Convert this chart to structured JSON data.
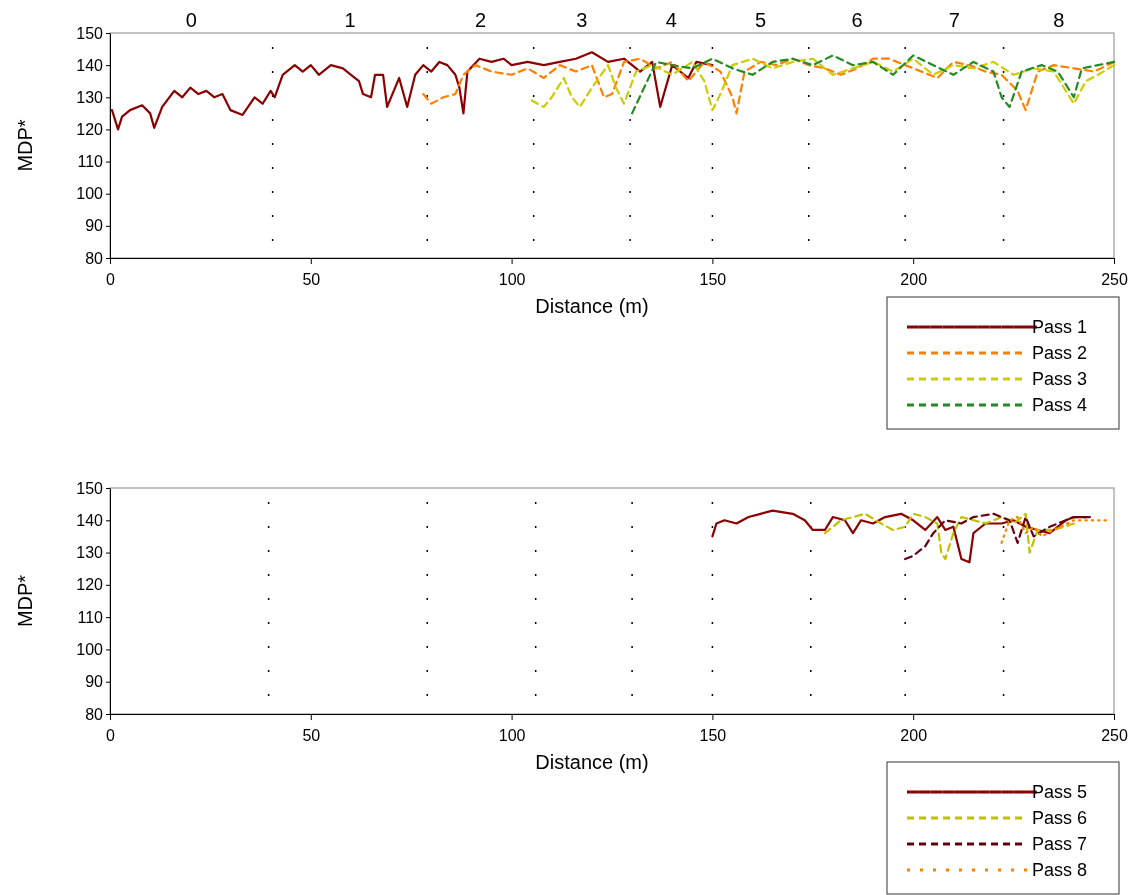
{
  "chart_data": [
    {
      "type": "line",
      "xlabel": "Distance (m)",
      "ylabel": "MDP*",
      "xlim": [
        0,
        250
      ],
      "xticks": [
        0,
        50,
        100,
        150,
        200,
        250
      ],
      "ylim": [
        80,
        150
      ],
      "yticks": [
        80,
        90,
        100,
        110,
        120,
        130,
        140,
        150
      ],
      "grid": false,
      "legend": "bottom right",
      "marker": "none",
      "annotations": [
        "0",
        "1",
        "2",
        "3",
        "4",
        "5",
        "6",
        "7",
        "8"
      ],
      "ref_lines": [
        {
          "axis": "x",
          "value": 40.5,
          "color": "#000000",
          "line_style": "dotted"
        },
        {
          "axis": "x",
          "value": 79,
          "color": "#000000",
          "line_style": "dotted"
        },
        {
          "axis": "x",
          "value": 105.5,
          "color": "#000000",
          "line_style": "dotted"
        },
        {
          "axis": "x",
          "value": 129.5,
          "color": "#000000",
          "line_style": "dotted"
        },
        {
          "axis": "x",
          "value": 150,
          "color": "#000000",
          "line_style": "dotted"
        },
        {
          "axis": "x",
          "value": 174,
          "color": "#000000",
          "line_style": "dotted"
        },
        {
          "axis": "x",
          "value": 198,
          "color": "#000000",
          "line_style": "dotted"
        },
        {
          "axis": "x",
          "value": 222.5,
          "color": "#000000",
          "line_style": "dotted"
        }
      ],
      "series": [
        {
          "name": "Pass 1",
          "color": "#8b0000",
          "line_style": "solid",
          "x": [
            0.5,
            2,
            3,
            5,
            8,
            10,
            11,
            13,
            16,
            18,
            20,
            22,
            24,
            26,
            28,
            30,
            33,
            36,
            38,
            40,
            41,
            43,
            46,
            48,
            50,
            52,
            55,
            58,
            60,
            62,
            63,
            65,
            66,
            68,
            69,
            71,
            72,
            74,
            76,
            78,
            80,
            82,
            84,
            86,
            87,
            88,
            89,
            92,
            95,
            98,
            100,
            104,
            108,
            112,
            116,
            120,
            124,
            128,
            132,
            135,
            137,
            140,
            144,
            146,
            150
          ],
          "values": [
            126,
            120,
            124,
            126,
            127.5,
            125,
            120.5,
            127,
            132,
            130,
            133,
            131,
            132,
            130,
            131,
            126,
            124.5,
            130,
            128,
            132,
            130,
            137,
            140,
            138,
            140,
            137,
            140,
            139,
            137,
            135,
            131,
            130,
            137,
            137,
            127,
            133,
            136,
            127,
            137,
            140,
            138,
            141,
            140,
            137,
            133,
            125,
            138,
            142,
            141,
            142,
            140,
            141,
            140,
            141,
            142,
            144,
            141,
            142,
            138,
            141,
            127,
            140,
            136,
            141,
            140
          ]
        },
        {
          "name": "Pass 2",
          "color": "#ff8000",
          "line_style": "dashed",
          "x": [
            78,
            80,
            83,
            86,
            88,
            91,
            95,
            100,
            104,
            108,
            112,
            116,
            120,
            123,
            125,
            128,
            132,
            136,
            140,
            144,
            148,
            152,
            155,
            156,
            158,
            162,
            166,
            170,
            174,
            178,
            182,
            186,
            190,
            194,
            198,
            202,
            206,
            210,
            214,
            218,
            222,
            226,
            228,
            231,
            235,
            240,
            245,
            250
          ],
          "values": [
            131,
            128,
            130,
            131,
            137,
            140,
            138,
            137,
            139,
            136,
            140,
            138,
            140,
            130,
            131,
            141,
            142,
            139,
            141,
            135,
            141,
            138,
            130,
            125,
            138,
            141,
            140,
            142,
            140,
            139,
            137,
            139,
            142,
            142,
            140,
            138,
            136,
            141,
            140,
            138,
            137,
            132,
            126,
            138,
            140,
            139,
            138,
            141
          ]
        },
        {
          "name": "Pass 3",
          "color": "#cccc00",
          "line_style": "dashed",
          "x": [
            105,
            108,
            110,
            113,
            115,
            117,
            120,
            124,
            126,
            128,
            131,
            135,
            140,
            145,
            148,
            150,
            152,
            155,
            160,
            165,
            170,
            175,
            180,
            185,
            190,
            195,
            200,
            205,
            210,
            215,
            220,
            225,
            230,
            235,
            240,
            243,
            246,
            250
          ],
          "values": [
            129,
            127,
            130,
            136,
            130,
            127,
            133,
            140,
            133,
            128,
            138,
            140,
            137,
            141,
            135,
            126,
            131,
            140,
            142,
            139,
            141,
            142,
            137,
            139,
            141,
            138,
            142,
            137,
            140,
            139,
            141,
            137,
            139,
            138,
            128,
            135,
            137,
            140
          ]
        },
        {
          "name": "Pass 4",
          "color": "#228b22",
          "line_style": "dashed",
          "x": [
            130,
            133,
            136,
            140,
            145,
            150,
            155,
            160,
            165,
            170,
            175,
            180,
            185,
            190,
            195,
            200,
            205,
            210,
            215,
            220,
            222,
            224,
            227,
            232,
            236,
            240,
            242,
            246,
            250
          ],
          "values": [
            125,
            133,
            141,
            140,
            139,
            142,
            139,
            137,
            141,
            142,
            140,
            143,
            140,
            141,
            137,
            143,
            140,
            137,
            141,
            138,
            130,
            127,
            138,
            140,
            138,
            130,
            139,
            140,
            141
          ]
        }
      ]
    },
    {
      "type": "line",
      "xlabel": "Distance (m)",
      "ylabel": "MDP*",
      "xlim": [
        0,
        250
      ],
      "xticks": [
        0,
        50,
        100,
        150,
        200,
        250
      ],
      "ylim": [
        80,
        150
      ],
      "yticks": [
        80,
        90,
        100,
        110,
        120,
        130,
        140,
        150
      ],
      "grid": false,
      "legend": "bottom right",
      "marker": "none",
      "ref_lines": [
        {
          "axis": "x",
          "value": 39.5,
          "color": "#000000",
          "line_style": "dotted"
        },
        {
          "axis": "x",
          "value": 79,
          "color": "#000000",
          "line_style": "dotted"
        },
        {
          "axis": "x",
          "value": 106,
          "color": "#000000",
          "line_style": "dotted"
        },
        {
          "axis": "x",
          "value": 130,
          "color": "#000000",
          "line_style": "dotted"
        },
        {
          "axis": "x",
          "value": 150,
          "color": "#000000",
          "line_style": "dotted"
        },
        {
          "axis": "x",
          "value": 174.5,
          "color": "#000000",
          "line_style": "dotted"
        },
        {
          "axis": "x",
          "value": 198,
          "color": "#000000",
          "line_style": "dotted"
        },
        {
          "axis": "x",
          "value": 222.5,
          "color": "#000000",
          "line_style": "dotted"
        }
      ],
      "series": [
        {
          "name": "Pass 5",
          "color": "#8b0000",
          "line_style": "solid",
          "x": [
            150,
            151,
            153,
            156,
            159,
            162,
            165,
            170,
            173,
            175,
            178,
            180,
            183,
            185,
            187,
            190,
            193,
            197,
            200,
            203,
            206,
            208,
            210,
            211,
            212,
            214,
            215,
            218,
            222,
            225,
            228,
            231,
            234,
            238,
            240,
            243
          ],
          "values": [
            135,
            139,
            140,
            139,
            141,
            142,
            143,
            142,
            140,
            137,
            137,
            141,
            140,
            136,
            140,
            139,
            141,
            142,
            140,
            137,
            141,
            137,
            138,
            133,
            128,
            127,
            136,
            139,
            139,
            140,
            138,
            137,
            136,
            140,
            141,
            141
          ]
        },
        {
          "name": "Pass 6",
          "color": "#c0c000",
          "line_style": "dashed",
          "x": [
            178,
            180,
            182,
            185,
            188,
            192,
            195,
            198,
            200,
            203,
            206,
            207,
            208,
            210,
            212,
            215,
            218,
            222,
            225,
            228,
            229,
            231,
            235,
            240
          ],
          "values": [
            136,
            138,
            140,
            141,
            142,
            139,
            137,
            138,
            142,
            141,
            139,
            130,
            128,
            136,
            141,
            140,
            139,
            141,
            139,
            142,
            130,
            137,
            137,
            139
          ]
        },
        {
          "name": "Pass 7",
          "color": "#660011",
          "line_style": "dashed",
          "x": [
            198,
            200,
            203,
            205,
            208,
            212,
            215,
            220,
            224,
            226,
            228,
            230,
            234,
            240,
            244
          ],
          "values": [
            128,
            129,
            132,
            136,
            140,
            139,
            141,
            142,
            140,
            133,
            141,
            135,
            138,
            141,
            141
          ]
        },
        {
          "name": "Pass 8",
          "color": "#ff8000",
          "line_style": "dotted",
          "x": [
            222,
            224,
            226,
            228,
            230,
            232,
            235,
            240,
            245,
            248
          ],
          "values": [
            133,
            140,
            141,
            136,
            138,
            135,
            137,
            140,
            140,
            140
          ]
        }
      ]
    }
  ]
}
